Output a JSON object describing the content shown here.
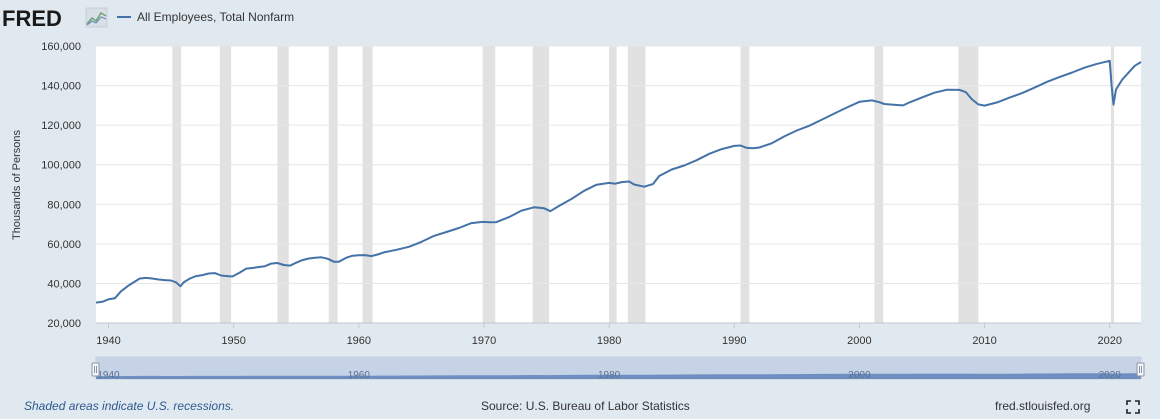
{
  "header": {
    "logo_text": "FRED",
    "series_label": "All Employees, Total Nonfarm",
    "series_color": "#4572a7"
  },
  "footer": {
    "recession_note": "Shaded areas indicate U.S. recessions.",
    "source": "Source: U.S. Bureau of Labor Statistics",
    "site": "fred.stlouisfed.org"
  },
  "navigator": {
    "labels": [
      "1940",
      "1960",
      "1980",
      "2000",
      "2020"
    ]
  },
  "chart_data": {
    "type": "line",
    "title": "",
    "xlabel": "",
    "ylabel": "Thousands of Persons",
    "xlim": [
      1939,
      2022.5
    ],
    "ylim": [
      20000,
      160000
    ],
    "x_ticks": [
      1940,
      1950,
      1960,
      1970,
      1980,
      1990,
      2000,
      2010,
      2020
    ],
    "x_tick_labels": [
      "1940",
      "1950",
      "1960",
      "1970",
      "1980",
      "1990",
      "2000",
      "2010",
      "2020"
    ],
    "y_ticks": [
      20000,
      40000,
      60000,
      80000,
      100000,
      120000,
      140000,
      160000
    ],
    "y_tick_labels": [
      "20,000",
      "40,000",
      "60,000",
      "80,000",
      "100,000",
      "120,000",
      "140,000",
      "160,000"
    ],
    "grid": true,
    "legend": "top-left",
    "recessions": [
      [
        1945.1,
        1945.8
      ],
      [
        1948.9,
        1949.8
      ],
      [
        1953.5,
        1954.4
      ],
      [
        1957.6,
        1958.3
      ],
      [
        1960.3,
        1961.1
      ],
      [
        1969.9,
        1970.9
      ],
      [
        1973.9,
        1975.2
      ],
      [
        1980.0,
        1980.6
      ],
      [
        1981.5,
        1982.9
      ],
      [
        1990.5,
        1991.2
      ],
      [
        2001.2,
        2001.9
      ],
      [
        2007.9,
        2009.5
      ],
      [
        2020.1,
        2020.35
      ]
    ],
    "series": [
      {
        "name": "All Employees, Total Nonfarm",
        "color": "#4572a7",
        "x": [
          1939.0,
          1939.5,
          1940.0,
          1940.5,
          1941.0,
          1941.5,
          1942.0,
          1942.5,
          1943.0,
          1943.5,
          1944.0,
          1944.5,
          1945.0,
          1945.4,
          1945.75,
          1946.0,
          1946.5,
          1947.0,
          1947.5,
          1948.0,
          1948.5,
          1949.0,
          1949.5,
          1949.9,
          1950.5,
          1951.0,
          1951.5,
          1952.0,
          1952.5,
          1953.0,
          1953.5,
          1954.0,
          1954.5,
          1955.0,
          1955.5,
          1956.0,
          1956.5,
          1957.0,
          1957.5,
          1958.0,
          1958.4,
          1959.0,
          1959.5,
          1960.0,
          1960.5,
          1961.0,
          1961.5,
          1962.0,
          1963.0,
          1964.0,
          1965.0,
          1966.0,
          1967.0,
          1968.0,
          1969.0,
          1969.9,
          1970.5,
          1971.0,
          1972.0,
          1973.0,
          1974.0,
          1974.8,
          1975.3,
          1976.0,
          1977.0,
          1978.0,
          1979.0,
          1980.0,
          1980.5,
          1981.0,
          1981.6,
          1982.0,
          1982.8,
          1983.5,
          1984.0,
          1985.0,
          1986.0,
          1987.0,
          1988.0,
          1989.0,
          1990.0,
          1990.5,
          1991.0,
          1991.5,
          1992.0,
          1993.0,
          1994.0,
          1995.0,
          1996.0,
          1997.0,
          1998.0,
          1999.0,
          2000.0,
          2001.0,
          2001.6,
          2002.0,
          2003.0,
          2003.5,
          2004.0,
          2005.0,
          2006.0,
          2007.0,
          2008.0,
          2008.5,
          2009.0,
          2009.5,
          2010.0,
          2011.0,
          2012.0,
          2013.0,
          2014.0,
          2015.0,
          2016.0,
          2017.0,
          2018.0,
          2019.0,
          2020.0,
          2020.15,
          2020.3,
          2020.5,
          2021.0,
          2021.5,
          2022.0,
          2022.5
        ],
        "y": [
          30300,
          30700,
          32000,
          32500,
          36000,
          38500,
          40500,
          42500,
          42800,
          42500,
          42000,
          41700,
          41500,
          40500,
          38600,
          40500,
          42500,
          43700,
          44200,
          45000,
          45200,
          44000,
          43700,
          43500,
          45500,
          47500,
          47800,
          48300,
          48700,
          50000,
          50300,
          49300,
          49000,
          50500,
          51800,
          52600,
          53000,
          53200,
          52500,
          51000,
          51000,
          53000,
          54000,
          54200,
          54300,
          53800,
          54600,
          55700,
          57000,
          58500,
          61000,
          64000,
          66000,
          68000,
          70500,
          71100,
          70900,
          71000,
          73500,
          76800,
          78500,
          78000,
          76500,
          79200,
          82700,
          86800,
          89900,
          90800,
          90400,
          91200,
          91500,
          90000,
          88900,
          90200,
          94300,
          97600,
          99600,
          102300,
          105500,
          107900,
          109500,
          109700,
          108500,
          108300,
          108700,
          110800,
          114300,
          117300,
          119700,
          122800,
          125900,
          128900,
          131800,
          132500,
          131600,
          130700,
          130200,
          130000,
          131500,
          134000,
          136400,
          137900,
          137800,
          136700,
          133000,
          130500,
          129900,
          131500,
          133900,
          136200,
          139000,
          141900,
          144400,
          146600,
          149100,
          151000,
          152500,
          140000,
          130400,
          138000,
          143000,
          146500,
          150000,
          151900
        ]
      }
    ]
  }
}
